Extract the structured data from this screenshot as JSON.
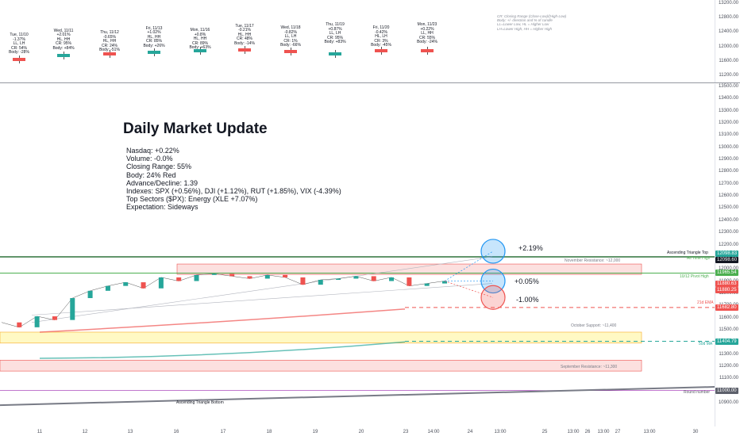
{
  "top_panel": {
    "days": [
      {
        "lines": [
          "Tue, 11/10",
          "-1.37%",
          "LL, LH",
          "CR: 54%",
          "Body: -28%"
        ],
        "bar_color": "#ef5350"
      },
      {
        "lines": [
          "Wed, 11/11",
          "+2.01%",
          "HL, HH",
          "CR: 95%",
          "Body: +84%"
        ],
        "bar_color": "#26a69a"
      },
      {
        "lines": [
          "Thu, 11/12",
          "-0.65%",
          "HL, HH",
          "CR: 24%",
          "Body: -51%"
        ],
        "bar_color": "#ef5350"
      },
      {
        "lines": [
          "Fri, 11/13",
          "+1.02%",
          "HL, HH",
          "CR: 85%",
          "Body: +26%"
        ],
        "bar_color": "#26a69a"
      },
      {
        "lines": [
          "Mon, 11/16",
          "+0.8%",
          "HL, HH",
          "CR: 89%",
          "Body: +63%"
        ],
        "bar_color": "#26a69a"
      },
      {
        "lines": [
          "Tue, 11/17",
          "-0.21%",
          "HL, HH",
          "CR: 48%",
          "Body: -14%"
        ],
        "bar_color": "#ef5350"
      },
      {
        "lines": [
          "Wed, 11/18",
          "-0.82%",
          "LL, LH",
          "CR: 1%",
          "Body: -66%"
        ],
        "bar_color": "#ef5350"
      },
      {
        "lines": [
          "Thu, 11/19",
          "+0.87%",
          "LL, LH",
          "CR: 95%",
          "Body: +83%"
        ],
        "bar_color": "#26a69a"
      },
      {
        "lines": [
          "Fri, 11/20",
          "-0.42%",
          "HL, LH",
          "CR: 3%",
          "Body: -45%"
        ],
        "bar_color": "#ef5350"
      },
      {
        "lines": [
          "Mon, 11/23",
          "+0.22%",
          "LL, HH",
          "CR: 55%",
          "Body: -24%"
        ],
        "bar_color": "#ef5350"
      }
    ],
    "legend": [
      "CR: Closing Range (Close-Low)/(High-Low)",
      "Body: +/- direction and % of candle",
      "LL=Lower Low, HL = Higher Low",
      "LH=Lower High, HH = Higher High"
    ],
    "axis_ticks": [
      "13200.00",
      "12800.00",
      "12400.00",
      "12000.00",
      "11600.00",
      "11200.00"
    ]
  },
  "update": {
    "title": "Daily Market Update",
    "lines": [
      "Nasdaq: +0.22%",
      "Volume: -0.0%",
      "Closing Range: 55%",
      "Body: 24% Red",
      "Advance/Decline: 1.39",
      "Indexes: SPX (+0.56%), DJI (+1.12%), RUT (+1.85%), VIX (-4.39%)",
      "Top Sectors ($PX): Energy (XLE +7.07%)",
      "Expectation: Sideways"
    ]
  },
  "scenarios": {
    "up": "+2.19%",
    "flat": "+0.05%",
    "down": "-1.00%"
  },
  "levels": {
    "ascending_triangle_top": "Ascending Triangle Top",
    "all_time_high": "All Time High",
    "pivot": "10/12 Pivot High",
    "ema": "21d EMA",
    "sma": "50d MA",
    "round": "Round number",
    "ascending_triangle_bottom": "Ascending Triangle Bottom",
    "november_resistance": "November Resistance: ~12,000",
    "october_support": "October Support: ~11,400",
    "september_resistance": "September Resistance: ~11,300"
  },
  "price_tags": [
    {
      "label": "12098.83",
      "color": "#26a69a"
    },
    {
      "label": "12098.60",
      "color": "#131722"
    },
    {
      "label": "11965.54",
      "color": "#4caf50"
    },
    {
      "label": "11880.63",
      "color": "#ef5350"
    },
    {
      "label": "11880.25",
      "color": "#ef5350"
    },
    {
      "label": "11682.80",
      "color": "#ef5350"
    },
    {
      "label": "11404.79",
      "color": "#26a69a"
    },
    {
      "label": "11000.00",
      "color": "#5d606b"
    }
  ],
  "chart_data": {
    "type": "line",
    "title": "",
    "xlabel": "",
    "ylabel": "",
    "ylim": [
      10850,
      13550
    ],
    "x_tick_labels": [
      "11",
      "12",
      "13",
      "16",
      "17",
      "18",
      "19",
      "20",
      "23",
      "14:00",
      "24",
      "13:00",
      "25",
      "13:00",
      "26",
      "13:00",
      "27",
      "13:00",
      "30"
    ],
    "y_tick_labels": [
      "13500.00",
      "13400.00",
      "13300.00",
      "13200.00",
      "13100.00",
      "13000.00",
      "12900.00",
      "12800.00",
      "12700.00",
      "12600.00",
      "12500.00",
      "12400.00",
      "12300.00",
      "12200.00",
      "12100.00",
      "12000.00",
      "11900.00",
      "11800.00",
      "11700.00",
      "11600.00",
      "11500.00",
      "11400.00",
      "11300.00",
      "11200.00",
      "11100.00",
      "11000.00",
      "10900.00"
    ],
    "series": [
      {
        "name": "",
        "values": [
          11560,
          11520,
          11610,
          11580,
          11760,
          11820,
          11860,
          11890,
          11840,
          11930,
          11900,
          11950,
          11960,
          11940,
          11920,
          11950,
          11930,
          11870,
          11910,
          11920,
          11940,
          11900,
          11930,
          11860,
          11880,
          11900
        ]
      }
    ],
    "levels": [
      {
        "name": "Ascending Triangle Top",
        "value": 12098.83
      },
      {
        "name": "All Time High",
        "value": 12098.6
      },
      {
        "name": "10/12 Pivot High",
        "value": 11965.54
      },
      {
        "name": "21d EMA",
        "value": 11682.8
      },
      {
        "name": "50d MA",
        "value": 11404.79
      },
      {
        "name": "Round number",
        "value": 11000.0
      }
    ],
    "zones": [
      {
        "name": "November Resistance: ~12,000",
        "from": 11955,
        "to": 12040
      },
      {
        "name": "October Support: ~11,400",
        "from": 11390,
        "to": 11480
      },
      {
        "name": "September Resistance: ~11,300",
        "from": 11160,
        "to": 11250
      }
    ]
  }
}
